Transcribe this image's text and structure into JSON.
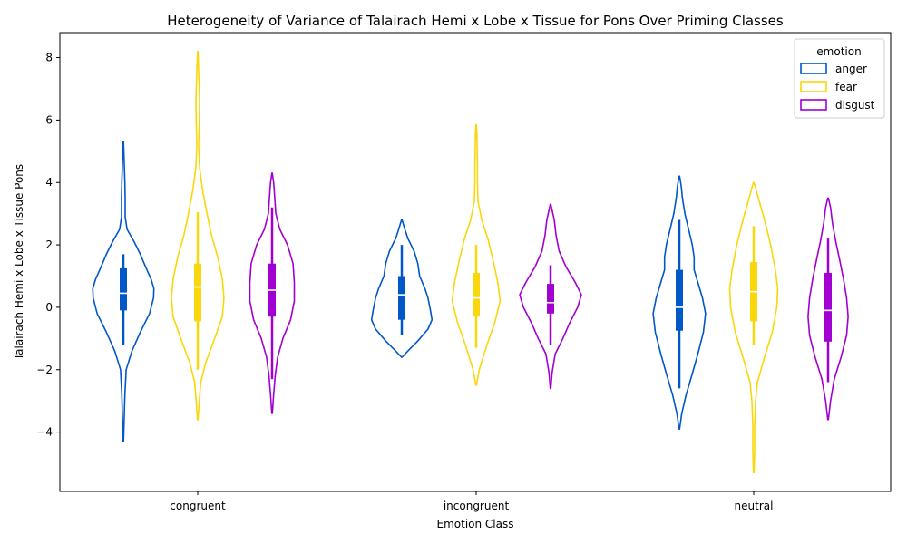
{
  "chart_data": {
    "type": "violin",
    "title": "Heterogeneity of Variance of Talairach Hemi x Lobe x Tissue for Pons Over Priming Classes",
    "xlabel": "Emotion Class",
    "ylabel": "Talairach Hemi x Lobe x Tissue Pons",
    "categories": [
      "congruent",
      "incongruent",
      "neutral"
    ],
    "ylim": [
      -5.9,
      8.8
    ],
    "yticks": [
      -4,
      -2,
      0,
      2,
      4,
      6,
      8
    ],
    "grid": false,
    "legend": {
      "title": "emotion",
      "placement": "top-right"
    },
    "series": [
      {
        "name": "anger",
        "color": "#0057C8",
        "stats": [
          {
            "q1": -0.1,
            "median": 0.45,
            "q3": 1.25,
            "whisker_low": -1.2,
            "whisker_high": 1.7
          },
          {
            "q1": -0.4,
            "median": 0.4,
            "q3": 1.0,
            "whisker_low": -0.9,
            "whisker_high": 2.0
          },
          {
            "q1": -0.75,
            "median": 0.0,
            "q3": 1.2,
            "whisker_low": -2.6,
            "whisker_high": 2.8
          }
        ],
        "density": [
          [
            [
              -4.3,
              0.005
            ],
            [
              -3.5,
              0.03
            ],
            [
              -2.8,
              0.05
            ],
            [
              -2.0,
              0.09
            ],
            [
              -1.4,
              0.28
            ],
            [
              -0.8,
              0.55
            ],
            [
              -0.2,
              0.85
            ],
            [
              0.3,
              0.98
            ],
            [
              0.6,
              0.99
            ],
            [
              0.9,
              0.9
            ],
            [
              1.3,
              0.72
            ],
            [
              1.7,
              0.55
            ],
            [
              2.1,
              0.35
            ],
            [
              2.5,
              0.12
            ],
            [
              2.9,
              0.06
            ],
            [
              3.5,
              0.06
            ],
            [
              4.0,
              0.05
            ],
            [
              4.6,
              0.03
            ],
            [
              5.3,
              0.005
            ]
          ],
          [
            [
              -1.6,
              0.01
            ],
            [
              -1.4,
              0.2
            ],
            [
              -1.1,
              0.5
            ],
            [
              -0.7,
              0.85
            ],
            [
              -0.4,
              0.98
            ],
            [
              -0.1,
              0.93
            ],
            [
              0.3,
              0.85
            ],
            [
              0.6,
              0.75
            ],
            [
              1.0,
              0.58
            ],
            [
              1.4,
              0.52
            ],
            [
              1.8,
              0.4
            ],
            [
              2.2,
              0.2
            ],
            [
              2.5,
              0.1
            ],
            [
              2.8,
              0.01
            ]
          ],
          [
            [
              -3.9,
              0.01
            ],
            [
              -3.4,
              0.08
            ],
            [
              -2.8,
              0.22
            ],
            [
              -2.2,
              0.4
            ],
            [
              -1.5,
              0.6
            ],
            [
              -0.8,
              0.78
            ],
            [
              -0.2,
              0.85
            ],
            [
              0.3,
              0.75
            ],
            [
              0.8,
              0.6
            ],
            [
              1.2,
              0.48
            ],
            [
              1.6,
              0.48
            ],
            [
              2.0,
              0.42
            ],
            [
              2.5,
              0.3
            ],
            [
              3.0,
              0.18
            ],
            [
              3.5,
              0.1
            ],
            [
              3.9,
              0.06
            ],
            [
              4.2,
              0.01
            ]
          ]
        ]
      },
      {
        "name": "fear",
        "color": "#F9D70B",
        "stats": [
          {
            "q1": -0.45,
            "median": 0.65,
            "q3": 1.4,
            "whisker_low": -2.0,
            "whisker_high": 3.05
          },
          {
            "q1": -0.3,
            "median": 0.3,
            "q3": 1.1,
            "whisker_low": -1.3,
            "whisker_high": 2.0
          },
          {
            "q1": -0.45,
            "median": 0.5,
            "q3": 1.45,
            "whisker_low": -1.2,
            "whisker_high": 2.6
          }
        ],
        "density": [
          [
            [
              -3.6,
              0.01
            ],
            [
              -3.0,
              0.05
            ],
            [
              -2.4,
              0.1
            ],
            [
              -1.8,
              0.25
            ],
            [
              -1.0,
              0.55
            ],
            [
              -0.3,
              0.8
            ],
            [
              0.3,
              0.85
            ],
            [
              0.9,
              0.8
            ],
            [
              1.6,
              0.65
            ],
            [
              2.3,
              0.45
            ],
            [
              3.0,
              0.3
            ],
            [
              3.8,
              0.15
            ],
            [
              4.5,
              0.06
            ],
            [
              5.2,
              0.03
            ],
            [
              6.0,
              0.05
            ],
            [
              6.6,
              0.06
            ],
            [
              7.2,
              0.04
            ],
            [
              7.8,
              0.02
            ],
            [
              8.2,
              0.005
            ]
          ],
          [
            [
              -2.5,
              0.01
            ],
            [
              -2.0,
              0.1
            ],
            [
              -1.2,
              0.35
            ],
            [
              -0.5,
              0.6
            ],
            [
              0.2,
              0.78
            ],
            [
              0.8,
              0.7
            ],
            [
              1.5,
              0.55
            ],
            [
              2.2,
              0.38
            ],
            [
              2.8,
              0.18
            ],
            [
              3.4,
              0.06
            ],
            [
              4.0,
              0.04
            ],
            [
              4.6,
              0.04
            ],
            [
              5.2,
              0.03
            ],
            [
              5.6,
              0.02
            ],
            [
              5.85,
              0.005
            ]
          ],
          [
            [
              -5.3,
              0.01
            ],
            [
              -4.6,
              0.03
            ],
            [
              -3.8,
              0.03
            ],
            [
              -3.0,
              0.06
            ],
            [
              -2.4,
              0.12
            ],
            [
              -1.6,
              0.35
            ],
            [
              -0.8,
              0.6
            ],
            [
              0.0,
              0.75
            ],
            [
              0.6,
              0.78
            ],
            [
              1.2,
              0.7
            ],
            [
              2.0,
              0.55
            ],
            [
              2.8,
              0.35
            ],
            [
              3.4,
              0.18
            ],
            [
              4.0,
              0.01
            ]
          ]
        ]
      },
      {
        "name": "disgust",
        "color": "#A200D0",
        "stats": [
          {
            "q1": -0.3,
            "median": 0.55,
            "q3": 1.4,
            "whisker_low": -2.3,
            "whisker_high": 3.2
          },
          {
            "q1": -0.2,
            "median": 0.15,
            "q3": 0.75,
            "whisker_low": -1.2,
            "whisker_high": 1.35
          },
          {
            "q1": -1.1,
            "median": -0.1,
            "q3": 1.1,
            "whisker_low": -2.4,
            "whisker_high": 2.2
          }
        ],
        "density": [
          [
            [
              -3.4,
              0.01
            ],
            [
              -2.8,
              0.05
            ],
            [
              -2.2,
              0.1
            ],
            [
              -1.6,
              0.18
            ],
            [
              -1.0,
              0.35
            ],
            [
              -0.4,
              0.6
            ],
            [
              0.2,
              0.72
            ],
            [
              0.8,
              0.72
            ],
            [
              1.4,
              0.68
            ],
            [
              2.0,
              0.5
            ],
            [
              2.5,
              0.25
            ],
            [
              3.0,
              0.12
            ],
            [
              3.6,
              0.08
            ],
            [
              4.0,
              0.05
            ],
            [
              4.3,
              0.005
            ]
          ],
          [
            [
              -2.6,
              0.01
            ],
            [
              -2.1,
              0.05
            ],
            [
              -1.5,
              0.15
            ],
            [
              -1.0,
              0.4
            ],
            [
              -0.5,
              0.62
            ],
            [
              0.0,
              0.88
            ],
            [
              0.4,
              1.0
            ],
            [
              0.8,
              0.8
            ],
            [
              1.3,
              0.5
            ],
            [
              1.8,
              0.28
            ],
            [
              2.3,
              0.18
            ],
            [
              2.8,
              0.12
            ],
            [
              3.3,
              0.01
            ]
          ],
          [
            [
              -3.6,
              0.01
            ],
            [
              -3.0,
              0.08
            ],
            [
              -2.3,
              0.2
            ],
            [
              -1.6,
              0.42
            ],
            [
              -0.9,
              0.6
            ],
            [
              -0.3,
              0.65
            ],
            [
              0.3,
              0.6
            ],
            [
              0.9,
              0.5
            ],
            [
              1.5,
              0.38
            ],
            [
              2.1,
              0.25
            ],
            [
              2.7,
              0.14
            ],
            [
              3.2,
              0.08
            ],
            [
              3.5,
              0.01
            ]
          ]
        ]
      }
    ]
  }
}
